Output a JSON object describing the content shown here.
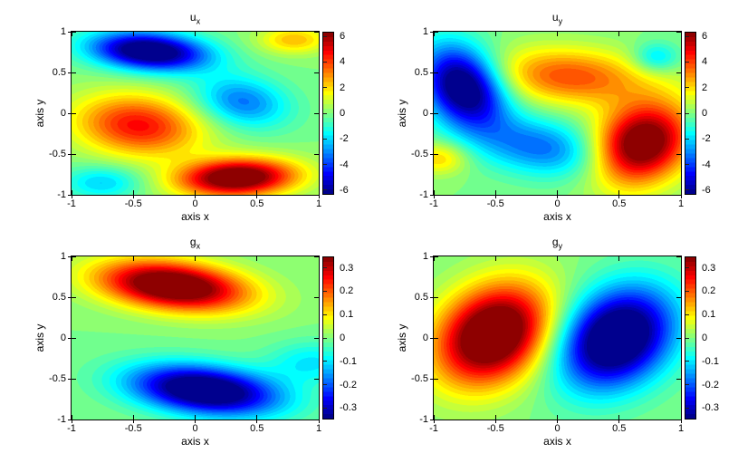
{
  "colors": {
    "background": "#ffffff",
    "frame": "#000000",
    "text": "#000000",
    "colormap_name": "jet",
    "jet_dark_blue": "#000080",
    "jet_dark_red": "#800000",
    "jet_mid_green": "#80ff80"
  },
  "chart_data": [
    {
      "type": "heatmap",
      "title_base": "u",
      "title_sub": "x",
      "xlabel": "axis x",
      "ylabel": "axis y",
      "xlim": [
        -1,
        1
      ],
      "ylim": [
        -1,
        1
      ],
      "xticks": [
        -1,
        -0.5,
        0,
        0.5,
        1
      ],
      "yticks": [
        -1,
        -0.5,
        0,
        0.5,
        1
      ],
      "vmax": 6.3,
      "levels": 36,
      "colorbar_ticks": [
        6,
        4,
        2,
        0,
        -2,
        -4,
        -6
      ],
      "legend": "colorbar-right",
      "grid": false,
      "blobs": [
        {
          "x": -0.37,
          "y": 0.76,
          "sx": 0.33,
          "sy": 0.16,
          "rot": -8,
          "amp": -7.6
        },
        {
          "x": 0.38,
          "y": 0.14,
          "sx": 0.27,
          "sy": 0.21,
          "rot": -25,
          "amp": -3.3
        },
        {
          "x": -0.46,
          "y": -0.15,
          "sx": 0.36,
          "sy": 0.26,
          "rot": -12,
          "amp": 4.7
        },
        {
          "x": 0.34,
          "y": -0.79,
          "sx": 0.33,
          "sy": 0.16,
          "rot": 4,
          "amp": 7.6
        },
        {
          "x": 0.8,
          "y": 0.9,
          "sx": 0.2,
          "sy": 0.12,
          "rot": 0,
          "amp": 2.4
        },
        {
          "x": -0.75,
          "y": -0.85,
          "sx": 0.22,
          "sy": 0.14,
          "rot": 0,
          "amp": -2.2
        }
      ]
    },
    {
      "type": "heatmap",
      "title_base": "u",
      "title_sub": "y",
      "xlabel": "axis x",
      "ylabel": "axis y",
      "xlim": [
        -1,
        1
      ],
      "ylim": [
        -1,
        1
      ],
      "xticks": [
        -1,
        -0.5,
        0,
        0.5,
        1
      ],
      "yticks": [
        -1,
        -0.5,
        0,
        0.5,
        1
      ],
      "vmax": 6.3,
      "levels": 36,
      "colorbar_ticks": [
        6,
        4,
        2,
        0,
        -2,
        -4,
        -6
      ],
      "legend": "colorbar-right",
      "grid": false,
      "blobs": [
        {
          "x": -0.76,
          "y": 0.33,
          "sx": 0.22,
          "sy": 0.36,
          "rot": 16,
          "amp": -7.6
        },
        {
          "x": -0.12,
          "y": -0.42,
          "sx": 0.4,
          "sy": 0.24,
          "rot": -18,
          "amp": -3.4
        },
        {
          "x": 0.1,
          "y": 0.45,
          "sx": 0.45,
          "sy": 0.24,
          "rot": -6,
          "amp": 3.8
        },
        {
          "x": 0.68,
          "y": -0.38,
          "sx": 0.26,
          "sy": 0.36,
          "rot": -20,
          "amp": 7.6
        },
        {
          "x": 0.8,
          "y": 0.68,
          "sx": 0.13,
          "sy": 0.13,
          "rot": 0,
          "amp": -2.2
        },
        {
          "x": -0.95,
          "y": -0.55,
          "sx": 0.16,
          "sy": 0.14,
          "rot": 0,
          "amp": 2.2
        }
      ]
    },
    {
      "type": "heatmap",
      "title_base": "g",
      "title_sub": "x",
      "xlabel": "axis x",
      "ylabel": "axis y",
      "xlim": [
        -1,
        1
      ],
      "ylim": [
        -1,
        1
      ],
      "xticks": [
        -1,
        -0.5,
        0,
        0.5,
        1
      ],
      "yticks": [
        -1,
        -0.5,
        0,
        0.5,
        1
      ],
      "vmax": 0.345,
      "levels": 36,
      "colorbar_ticks": [
        0.3,
        0.2,
        0.1,
        0,
        -0.1,
        -0.2,
        -0.3
      ],
      "legend": "colorbar-right",
      "grid": false,
      "blobs": [
        {
          "x": -0.18,
          "y": 0.64,
          "sx": 0.42,
          "sy": 0.2,
          "rot": -11,
          "amp": 0.44
        },
        {
          "x": 0.08,
          "y": -0.64,
          "sx": 0.42,
          "sy": 0.2,
          "rot": -11,
          "amp": -0.44
        },
        {
          "x": 0.95,
          "y": -0.3,
          "sx": 0.25,
          "sy": 0.18,
          "rot": 0,
          "amp": -0.1
        }
      ]
    },
    {
      "type": "heatmap",
      "title_base": "g",
      "title_sub": "y",
      "xlabel": "axis x",
      "ylabel": "axis y",
      "xlim": [
        -1,
        1
      ],
      "ylim": [
        -1,
        1
      ],
      "xticks": [
        -1,
        -0.5,
        0,
        0.5,
        1
      ],
      "yticks": [
        -1,
        -0.5,
        0,
        0.5,
        1
      ],
      "vmax": 0.345,
      "levels": 36,
      "colorbar_ticks": [
        0.3,
        0.2,
        0.1,
        0,
        -0.1,
        -0.2,
        -0.3
      ],
      "legend": "colorbar-right",
      "grid": false,
      "blobs": [
        {
          "x": -0.52,
          "y": 0.04,
          "sx": 0.3,
          "sy": 0.44,
          "rot": -20,
          "amp": 0.46
        },
        {
          "x": 0.48,
          "y": 0.0,
          "sx": 0.3,
          "sy": 0.44,
          "rot": -20,
          "amp": -0.46
        }
      ]
    }
  ]
}
